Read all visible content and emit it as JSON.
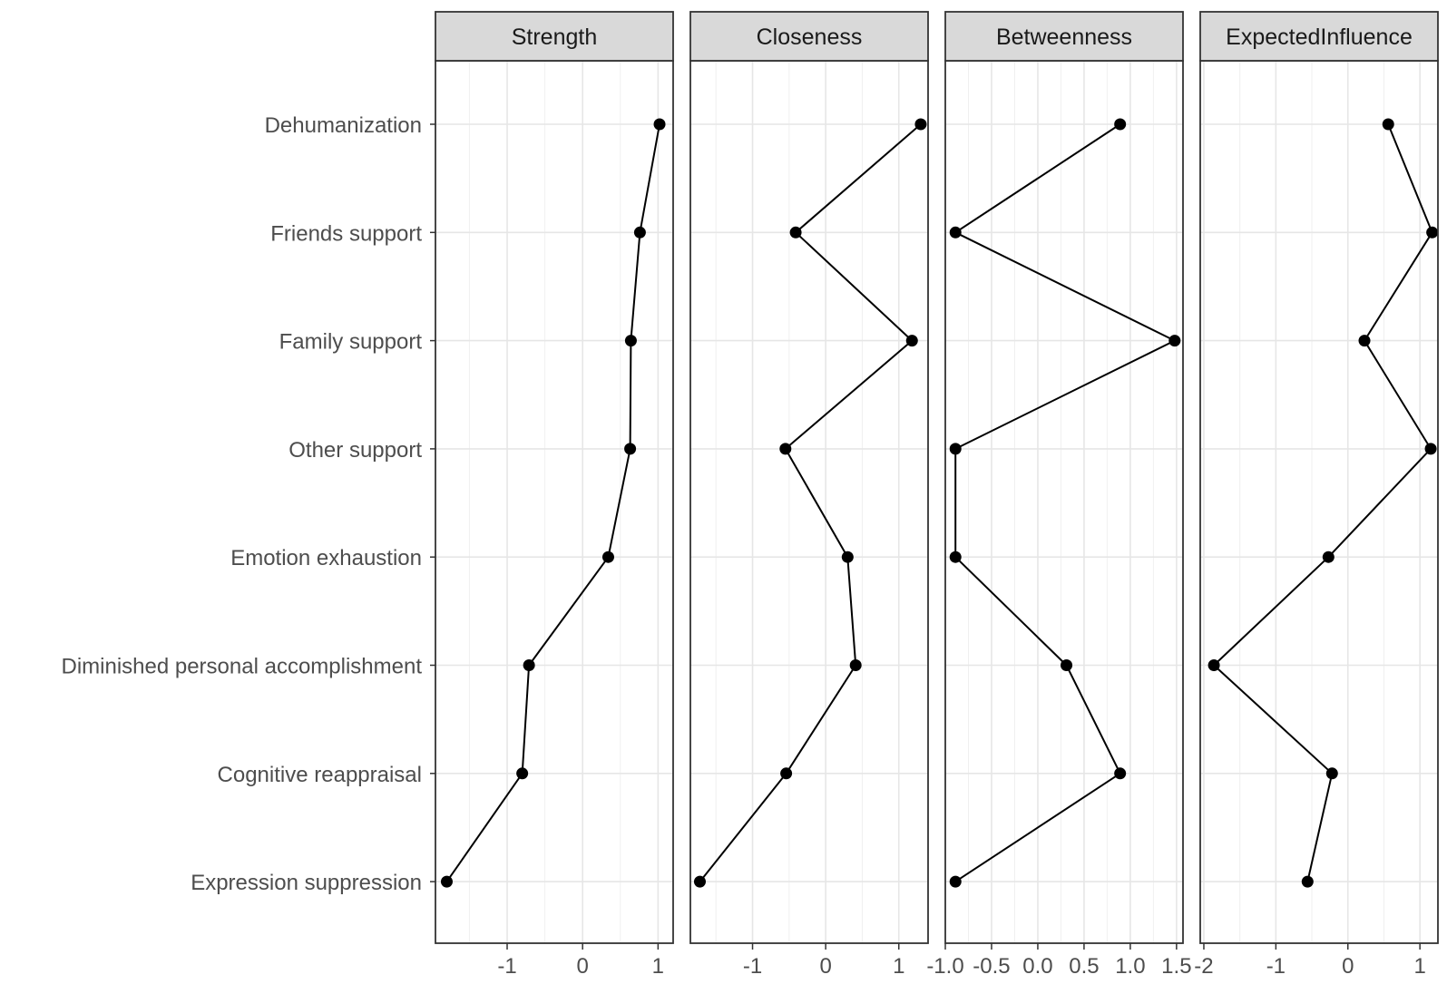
{
  "chart_data": {
    "type": "line",
    "categories": [
      "Dehumanization",
      "Friends support",
      "Family support",
      "Other support",
      "Emotion exhaustion",
      "Diminished personal accomplishment",
      "Cognitive reappraisal",
      "Expression suppression"
    ],
    "grid": true,
    "panels": [
      {
        "name": "Strength",
        "xlim": [
          -1.95,
          1.2
        ],
        "ticks": [
          -1,
          0,
          1
        ],
        "tick_labels": [
          "-1",
          "0",
          "1"
        ],
        "values": [
          1.02,
          0.76,
          0.64,
          0.63,
          0.34,
          -0.71,
          -0.8,
          -1.8
        ]
      },
      {
        "name": "Closeness",
        "xlim": [
          -1.85,
          1.4
        ],
        "ticks": [
          -1,
          0,
          1
        ],
        "tick_labels": [
          "-1",
          "0",
          "1"
        ],
        "values": [
          1.3,
          -0.41,
          1.18,
          -0.55,
          0.3,
          0.41,
          -0.54,
          -1.72
        ]
      },
      {
        "name": "Betweenness",
        "xlim": [
          -1.0,
          1.57
        ],
        "ticks": [
          -1.0,
          -0.5,
          0.0,
          0.5,
          1.0,
          1.5
        ],
        "tick_labels": [
          "-1.0",
          "-0.5",
          "0.0",
          "0.5",
          "1.0",
          "1.5"
        ],
        "values": [
          0.89,
          -0.89,
          1.48,
          -0.89,
          -0.89,
          0.31,
          0.89,
          -0.89
        ]
      },
      {
        "name": "ExpectedInfluence",
        "xlim": [
          -2.05,
          1.25
        ],
        "ticks": [
          -2,
          -1,
          0,
          1
        ],
        "tick_labels": [
          "-2",
          "-1",
          "0",
          "1"
        ],
        "values": [
          0.56,
          1.17,
          0.23,
          1.15,
          -0.27,
          -1.86,
          -0.22,
          -0.56
        ]
      }
    ]
  }
}
